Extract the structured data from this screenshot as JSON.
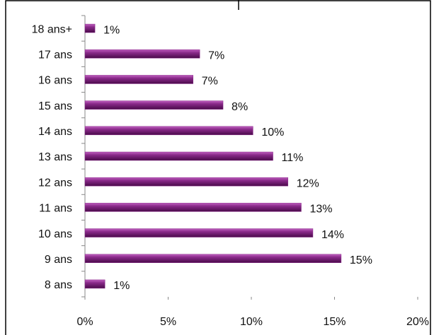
{
  "chart_data": {
    "type": "bar",
    "orientation": "horizontal",
    "categories": [
      "18 ans+",
      "17 ans",
      "16 ans",
      "15 ans",
      "14 ans",
      "13 ans",
      "12 ans",
      "11 ans",
      "10 ans",
      "9 ans",
      "8 ans"
    ],
    "values": [
      0.6,
      6.9,
      6.5,
      8.3,
      10.1,
      11.3,
      12.2,
      13.0,
      13.7,
      15.4,
      1.2
    ],
    "value_labels": [
      "1%",
      "7%",
      "7%",
      "8%",
      "10%",
      "11%",
      "12%",
      "13%",
      "14%",
      "15%",
      "1%"
    ],
    "color": "#8a2a8a",
    "xlim": [
      0,
      20
    ],
    "xticks": [
      {
        "value": 0,
        "label": "0%"
      },
      {
        "value": 5,
        "label": "5%"
      },
      {
        "value": 10,
        "label": "10%"
      },
      {
        "value": 15,
        "label": "15%"
      },
      {
        "value": 20,
        "label": "20%"
      }
    ]
  }
}
